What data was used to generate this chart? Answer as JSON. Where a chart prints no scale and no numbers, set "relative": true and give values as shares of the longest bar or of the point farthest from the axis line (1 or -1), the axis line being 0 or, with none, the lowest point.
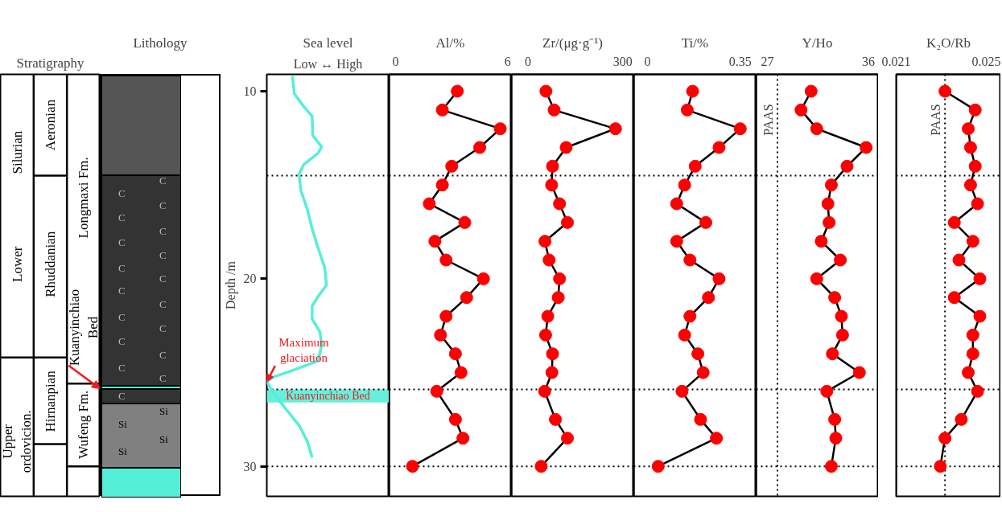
{
  "chart_data": [
    {
      "type": "other",
      "title": "Stratigraphy",
      "annotations": [
        "Silurian",
        "Lower",
        "Upper\nordovicion.",
        "Aeronian",
        "Rhuddanian",
        "Hirnanpian",
        "Longmaxi    Fm.",
        "Kuanyinchiao\nBed",
        "Wufeng Fm."
      ]
    },
    {
      "type": "other",
      "title": "Lithology",
      "colors": [
        "#555555",
        "#333333",
        "#55efd8",
        "#333333",
        "#808080",
        "#55efd8"
      ],
      "annotations": [
        "C",
        "C",
        "C",
        "C",
        "C",
        "C",
        "C",
        "C",
        "C",
        "C",
        "C",
        "C",
        "C",
        "C",
        "C",
        "C",
        "C",
        "C",
        "Si",
        "Si",
        "Si",
        "Si"
      ]
    },
    {
      "type": "line",
      "title": "Sea level",
      "xlabel": "Low ↔ High",
      "ylabel": "Depth /m",
      "relative": true,
      "orientation": "horizontal",
      "tick_labels": "y",
      "ylim": [
        31.6,
        9.1
      ],
      "yticks": [
        10,
        20,
        30
      ],
      "marker": "none",
      "line_style": "solid",
      "x": [
        9.18,
        10.13,
        10.82,
        11.33,
        12.36,
        12.96,
        13.3,
        13.91,
        14.42,
        15.28,
        16.31,
        17.34,
        18.37,
        19.4,
        20.34,
        20.94,
        21.46,
        22.15,
        22.83,
        23.52,
        24.38,
        24.89,
        25.24,
        25.49,
        26.09,
        26.95,
        27.81,
        28.67,
        29.53
      ],
      "series": [
        {
          "color": "#55efd8",
          "values": [
            0.43,
            0.46,
            0.62,
            0.76,
            0.77,
            0.92,
            0.86,
            0.62,
            0.54,
            0.57,
            0.68,
            0.76,
            0.86,
            0.97,
            1,
            0.86,
            0.76,
            0.76,
            0.89,
            0.92,
            0.86,
            0.43,
            0.11,
            0,
            0.11,
            0.32,
            0.54,
            0.68,
            0.76
          ]
        }
      ],
      "annotations": [
        {
          "text": "Maximum\nglaciation",
          "x": 0,
          "y": 25.49
        }
      ],
      "bands": [
        {
          "axis": "y",
          "from": 25.9,
          "to": 26.6,
          "label": "Kuanyinchiao Bed",
          "color": "#66f0dc"
        }
      ],
      "ref_lines": [
        {
          "axis": "y",
          "value": 14.5
        },
        {
          "axis": "y",
          "value": 25.9
        },
        {
          "axis": "y",
          "value": 30
        }
      ]
    },
    {
      "type": "line",
      "title": "Al/%",
      "orientation": "horizontal",
      "tick_labels": "x",
      "marker": "circle",
      "line_style": "solid",
      "xlim": [
        -0.35,
        6.2
      ],
      "xticks": [
        0,
        6
      ],
      "ylim": [
        31.6,
        9.1
      ],
      "x": [
        10,
        11,
        12,
        13,
        14,
        15,
        16,
        17,
        18,
        19,
        20,
        21,
        22,
        23,
        24,
        25,
        26,
        27.5,
        28.5,
        30
      ],
      "series": [
        {
          "color": "#ff0000",
          "values": [
            3.3,
            2.5,
            5.6,
            4.5,
            3.0,
            2.5,
            1.8,
            3.7,
            2.1,
            2.7,
            4.7,
            3.8,
            2.7,
            2.4,
            3.2,
            3.5,
            2.2,
            3.2,
            3.6,
            0.9
          ]
        }
      ],
      "ref_lines": [
        {
          "axis": "y",
          "value": 14.5
        },
        {
          "axis": "y",
          "value": 25.9
        },
        {
          "axis": "y",
          "value": 30
        }
      ]
    },
    {
      "type": "line",
      "title": "Zr/(μg·g⁻¹)",
      "orientation": "horizontal",
      "tick_labels": "x",
      "marker": "circle",
      "line_style": "solid",
      "xlim": [
        -52,
        335
      ],
      "xticks": [
        0,
        300
      ],
      "ylim": [
        31.6,
        9.1
      ],
      "x": [
        10,
        11,
        12,
        13,
        14,
        15,
        16,
        17,
        18,
        19,
        20,
        21,
        22,
        23,
        24,
        25,
        26,
        27.5,
        28.5,
        30
      ],
      "series": [
        {
          "color": "#ff0000",
          "values": [
            57,
            83,
            277,
            121,
            78,
            75,
            100,
            125,
            54,
            67,
            100,
            96,
            63,
            56,
            78,
            76,
            53,
            87,
            125,
            42
          ]
        }
      ],
      "ref_lines": [
        {
          "axis": "y",
          "value": 14.5
        },
        {
          "axis": "y",
          "value": 25.9
        },
        {
          "axis": "y",
          "value": 30
        }
      ]
    },
    {
      "type": "line",
      "title": "Ti/%",
      "orientation": "horizontal",
      "tick_labels": "x",
      "marker": "circle",
      "line_style": "solid",
      "xlim": [
        -0.052,
        0.41
      ],
      "xticks": [
        0,
        0.35
      ],
      "ylim": [
        31.6,
        9.1
      ],
      "x": [
        10,
        11,
        12,
        13,
        14,
        15,
        16,
        17,
        18,
        19,
        20,
        21,
        22,
        23,
        24,
        25,
        26,
        27.5,
        28.5,
        30
      ],
      "series": [
        {
          "color": "#ff0000",
          "values": [
            0.17,
            0.15,
            0.35,
            0.27,
            0.18,
            0.14,
            0.11,
            0.22,
            0.11,
            0.16,
            0.27,
            0.23,
            0.16,
            0.14,
            0.19,
            0.21,
            0.13,
            0.2,
            0.26,
            0.04
          ]
        }
      ],
      "ref_lines": [
        {
          "axis": "y",
          "value": 14.5
        },
        {
          "axis": "y",
          "value": 25.9
        },
        {
          "axis": "y",
          "value": 30
        }
      ]
    },
    {
      "type": "line",
      "title": "Y/Ho",
      "orientation": "horizontal",
      "tick_labels": "x",
      "marker": "circle",
      "line_style": "solid",
      "xlim": [
        26.0,
        36.9
      ],
      "xticks": [
        27,
        36
      ],
      "ylim": [
        31.6,
        9.1
      ],
      "x": [
        10,
        11,
        12,
        13,
        14,
        15,
        16,
        17,
        18,
        19,
        20,
        21,
        22,
        23,
        24,
        25,
        26,
        27.5,
        28.5,
        30
      ],
      "series": [
        {
          "color": "#ff0000",
          "values": [
            30.9,
            30.0,
            31.4,
            35.8,
            34.1,
            32.7,
            32.4,
            32.5,
            31.8,
            33.5,
            31.4,
            33.0,
            33.6,
            33.7,
            32.8,
            35.2,
            32.3,
            33.0,
            33.1,
            32.7
          ]
        }
      ],
      "ref_lines": [
        {
          "axis": "y",
          "value": 14.5
        },
        {
          "axis": "y",
          "value": 25.9
        },
        {
          "axis": "y",
          "value": 30
        },
        {
          "axis": "x",
          "value": 27.9,
          "label": "PAAS"
        }
      ]
    },
    {
      "type": "line",
      "title": "K₂O/Rb",
      "orientation": "horizontal",
      "tick_labels": "x",
      "marker": "circle",
      "line_style": "solid",
      "xlim": [
        0.021,
        0.0255
      ],
      "xticks": [
        0.021,
        0.025
      ],
      "ylim": [
        31.6,
        9.1
      ],
      "x": [
        10,
        11,
        12,
        13,
        14,
        15,
        16,
        17,
        18,
        19,
        20,
        21,
        22,
        23,
        24,
        25,
        26,
        27.5,
        28.5,
        30
      ],
      "series": [
        {
          "color": "#ff0000",
          "values": [
            0.0231,
            0.0244,
            0.0241,
            0.0242,
            0.0244,
            0.0242,
            0.0245,
            0.0235,
            0.0243,
            0.0237,
            0.0246,
            0.0235,
            0.0246,
            0.0243,
            0.0243,
            0.0241,
            0.0245,
            0.0238,
            0.0231,
            0.0229
          ]
        }
      ],
      "ref_lines": [
        {
          "axis": "y",
          "value": 14.5
        },
        {
          "axis": "y",
          "value": 25.9
        },
        {
          "axis": "y",
          "value": 30
        },
        {
          "axis": "x",
          "value": 0.0231,
          "label": "PAAS"
        }
      ]
    }
  ]
}
